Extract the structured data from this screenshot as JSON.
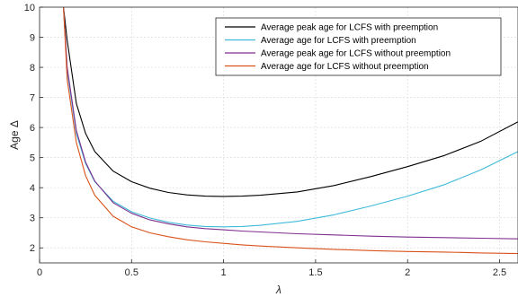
{
  "chart_data": {
    "type": "line",
    "xlabel": "λ",
    "ylabel": "Age  Δ",
    "xlim": [
      0,
      2.6
    ],
    "ylim": [
      1.5,
      10
    ],
    "xticks": [
      0,
      0.5,
      1,
      1.5,
      2,
      2.5
    ],
    "xtick_labels": [
      "0",
      "0.5",
      "1",
      "1.5",
      "2",
      "2.5"
    ],
    "yticks": [
      2,
      3,
      4,
      5,
      6,
      7,
      8,
      9,
      10
    ],
    "ytick_labels": [
      "2",
      "3",
      "4",
      "5",
      "6",
      "7",
      "8",
      "9",
      "10"
    ],
    "grid": true,
    "legend_position": "top-right",
    "x": [
      0.13,
      0.15,
      0.2,
      0.25,
      0.3,
      0.4,
      0.5,
      0.6,
      0.7,
      0.8,
      0.9,
      1.0,
      1.1,
      1.2,
      1.4,
      1.6,
      1.8,
      2.0,
      2.2,
      2.4,
      2.6
    ],
    "series": [
      {
        "name": "Average peak age for LCFS with preemption",
        "color": "#000000",
        "values": [
          10.0,
          8.9,
          6.8,
          5.8,
          5.2,
          4.55,
          4.2,
          3.98,
          3.84,
          3.76,
          3.72,
          3.71,
          3.72,
          3.75,
          3.86,
          4.07,
          4.37,
          4.7,
          5.07,
          5.55,
          6.19
        ]
      },
      {
        "name": "Average age for LCFS with preemption",
        "color": "#3fbad9",
        "values": [
          10.0,
          7.9,
          5.8,
          4.8,
          4.2,
          3.55,
          3.2,
          2.99,
          2.85,
          2.76,
          2.71,
          2.7,
          2.71,
          2.75,
          2.88,
          3.1,
          3.39,
          3.72,
          4.1,
          4.6,
          5.2
        ]
      },
      {
        "name": "Average peak age for LCFS without preemption",
        "color": "#7e2f8e",
        "values": [
          10.0,
          8.0,
          5.9,
          4.85,
          4.22,
          3.5,
          3.15,
          2.93,
          2.8,
          2.7,
          2.64,
          2.6,
          2.56,
          2.53,
          2.47,
          2.43,
          2.39,
          2.36,
          2.34,
          2.32,
          2.3
        ]
      },
      {
        "name": "Average age for LCFS without preemption",
        "color": "#d95319",
        "values": [
          10.0,
          7.6,
          5.5,
          4.4,
          3.75,
          3.05,
          2.7,
          2.5,
          2.37,
          2.27,
          2.2,
          2.15,
          2.1,
          2.06,
          2.0,
          1.95,
          1.91,
          1.88,
          1.86,
          1.83,
          1.81
        ]
      }
    ]
  }
}
